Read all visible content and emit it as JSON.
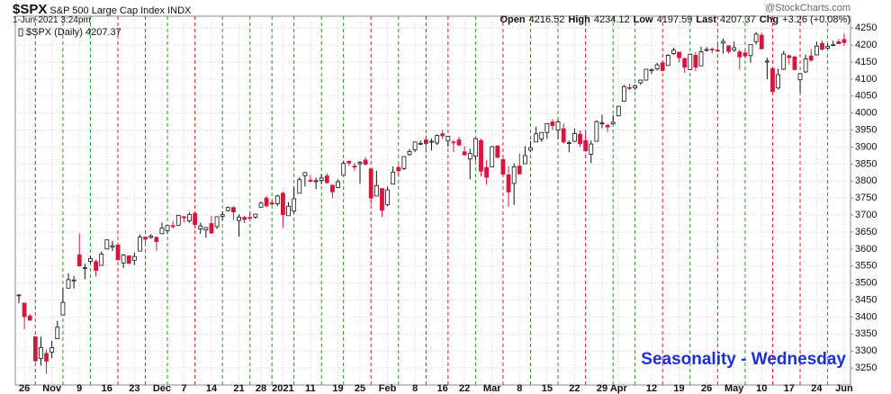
{
  "chart_data": {
    "type": "candlestick",
    "title": "$SPX",
    "subtitle": "S&P 500 Large Cap Index INDX",
    "date": "1-Jun-2021 3:24pm",
    "source": "@StockCharts.com",
    "stats": [
      {
        "label": "Open",
        "value": "4216.52"
      },
      {
        "label": "High",
        "value": "4234.12"
      },
      {
        "label": "Low",
        "value": "4197.59"
      },
      {
        "label": "Last",
        "value": "4207.37"
      },
      {
        "label": "Chg",
        "value": "+3.26 (+0.08%)"
      }
    ],
    "legend": "$SPX (Daily) 4207.37",
    "annotation": "Seasonality - Wednesday",
    "up_color": "#ffffff",
    "down_color": "#d4183d",
    "grid": true,
    "ylim": [
      3200,
      4285
    ],
    "yticks": [
      3250,
      3300,
      3350,
      3400,
      3450,
      3500,
      3550,
      3600,
      3650,
      3700,
      3750,
      3800,
      3850,
      3900,
      3950,
      4000,
      4050,
      4100,
      4150,
      4200,
      4250
    ],
    "categories": [
      null,
      "26",
      null,
      null,
      null,
      null,
      "Nov",
      null,
      null,
      null,
      null,
      "9",
      null,
      null,
      null,
      null,
      "16",
      null,
      null,
      null,
      null,
      "23",
      null,
      null,
      null,
      null,
      "Dec",
      null,
      null,
      null,
      "7",
      null,
      null,
      null,
      null,
      "14",
      null,
      null,
      null,
      null,
      "21",
      null,
      null,
      null,
      "28",
      null,
      null,
      null,
      "2021",
      null,
      null,
      null,
      null,
      "11",
      null,
      null,
      null,
      null,
      "19",
      null,
      null,
      null,
      "25",
      null,
      null,
      null,
      null,
      "Feb",
      null,
      null,
      null,
      null,
      "8",
      null,
      null,
      null,
      null,
      "16",
      null,
      null,
      null,
      "22",
      null,
      null,
      null,
      null,
      "Mar",
      null,
      null,
      null,
      null,
      "8",
      null,
      null,
      null,
      null,
      "15",
      null,
      null,
      null,
      null,
      "22",
      null,
      null,
      null,
      null,
      "29",
      null,
      null,
      "Apr",
      null,
      null,
      null,
      null,
      null,
      "12",
      null,
      null,
      null,
      null,
      "19",
      null,
      null,
      null,
      null,
      "26",
      null,
      null,
      null,
      null,
      "May",
      null,
      null,
      null,
      null,
      "10",
      null,
      null,
      null,
      null,
      "17",
      null,
      null,
      null,
      null,
      "24",
      null,
      null,
      null,
      null,
      "Jun"
    ],
    "open": [
      3464,
      3441,
      3403,
      3342,
      3278,
      3293,
      3297,
      3336,
      3406,
      3485,
      3508,
      3583,
      3543,
      3564,
      3563,
      3552,
      3600,
      3606,
      3612,
      3559,
      3580,
      3567,
      3594,
      3635,
      3634,
      3634,
      3645,
      3654,
      3669,
      3670,
      3695,
      3683,
      3705,
      3659,
      3656,
      3675,
      3666,
      3696,
      3713,
      3722,
      3684,
      3693,
      3693,
      3694,
      3723,
      3750,
      3736,
      3733,
      3764,
      3698,
      3712,
      3764,
      3816,
      3803,
      3801,
      3802,
      3815,
      3788,
      3781,
      3817,
      3858,
      3844,
      3851,
      3862,
      3836,
      3756,
      3778,
      3731,
      3791,
      3840,
      3837,
      3878,
      3892,
      3910,
      3921,
      3916,
      3912,
      3939,
      3918,
      3915,
      3921,
      3886,
      3865,
      3873,
      3919,
      3840,
      3842,
      3903,
      3863,
      3818,
      3793,
      3844,
      3851,
      3891,
      3915,
      3924,
      3943,
      3974,
      3950,
      3954,
      3913,
      3917,
      3938,
      3919,
      3879,
      3917,
      3970,
      3964,
      3968,
      3992,
      4035,
      4075,
      4074,
      4089,
      4097,
      4125,
      4130,
      4148,
      4140,
      4175,
      4179,
      4160,
      4128,
      4170,
      4139,
      4185,
      4188,
      4185,
      4206,
      4198,
      4185,
      4180,
      4177,
      4169,
      4210,
      4229,
      4150,
      4131,
      4074,
      4129,
      4169,
      4165,
      4098,
      4121,
      4168,
      4171,
      4205,
      4191,
      4201,
      4210,
      4216.52
    ],
    "high": [
      3466,
      3441,
      3409,
      3342,
      3342,
      3305,
      3330,
      3389,
      3486,
      3529,
      3521,
      3646,
      3557,
      3581,
      3569,
      3593,
      3628,
      3624,
      3619,
      3585,
      3582,
      3590,
      3643,
      3635,
      3644,
      3638,
      3678,
      3670,
      3682,
      3699,
      3697,
      3708,
      3712,
      3678,
      3665,
      3697,
      3695,
      3711,
      3725,
      3726,
      3702,
      3698,
      3711,
      3703,
      3740,
      3756,
      3744,
      3760,
      3769,
      3738,
      3783,
      3811,
      3826,
      3818,
      3810,
      3820,
      3823,
      3788,
      3805,
      3860,
      3861,
      3853,
      3859,
      3870,
      3836,
      3830,
      3778,
      3784,
      3843,
      3847,
      3872,
      3894,
      3915,
      3919,
      3931,
      3925,
      3937,
      3951,
      3933,
      3921,
      3930,
      3902,
      3895,
      3928,
      3925,
      3862,
      3903,
      3906,
      3874,
      3843,
      3852,
      3881,
      3903,
      3918,
      3960,
      3944,
      3970,
      3982,
      3981,
      3969,
      3919,
      3955,
      3949,
      3942,
      3919,
      3978,
      3995,
      3968,
      3994,
      4021,
      4083,
      4087,
      4084,
      4098,
      4129,
      4131,
      4148,
      4152,
      4173,
      4192,
      4180,
      4164,
      4175,
      4179,
      4195,
      4194,
      4193,
      4202,
      4219,
      4199,
      4210,
      4187,
      4188,
      4202,
      4238,
      4236,
      4163,
      4134,
      4131,
      4183,
      4171,
      4169,
      4117,
      4172,
      4188,
      4210,
      4213,
      4203,
      4213,
      4218,
      4234.12
    ],
    "low": [
      3440,
      3364,
      3388,
      3268,
      3257,
      3233,
      3279,
      3336,
      3405,
      3485,
      3484,
      3551,
      3511,
      3557,
      3519,
      3552,
      3600,
      3594,
      3567,
      3544,
      3556,
      3553,
      3594,
      3618,
      3630,
      3595,
      3645,
      3645,
      3660,
      3670,
      3678,
      3678,
      3660,
      3645,
      3633,
      3645,
      3659,
      3685,
      3710,
      3685,
      3636,
      3676,
      3689,
      3689,
      3723,
      3723,
      3730,
      3726,
      3663,
      3698,
      3705,
      3764,
      3784,
      3796,
      3776,
      3791,
      3792,
      3750,
      3780,
      3817,
      3845,
      3830,
      3792,
      3847,
      3732,
      3756,
      3694,
      3726,
      3791,
      3816,
      3832,
      3874,
      3885,
      3906,
      3885,
      3890,
      3906,
      3923,
      3901,
      3885,
      3902,
      3874,
      3805,
      3860,
      3814,
      3789,
      3842,
      3867,
      3818,
      3724,
      3730,
      3819,
      3851,
      3885,
      3915,
      3915,
      3924,
      3950,
      3923,
      3910,
      3885,
      3915,
      3901,
      3889,
      3853,
      3917,
      3955,
      3944,
      3966,
      3992,
      4035,
      4068,
      4068,
      4083,
      4096,
      4115,
      4125,
      4123,
      4140,
      4171,
      4150,
      4118,
      4126,
      4124,
      4139,
      4181,
      4176,
      4179,
      4175,
      4175,
      4180,
      4128,
      4160,
      4148,
      4202,
      4188,
      4099,
      4057,
      4069,
      4127,
      4143,
      4125,
      4061,
      4118,
      4151,
      4171,
      4183,
      4187,
      4197,
      4203,
      4197.59
    ],
    "close": [
      3465,
      3401,
      3391,
      3271,
      3310,
      3270,
      3310,
      3370,
      3443,
      3510,
      3509,
      3550,
      3545,
      3572,
      3537,
      3585,
      3627,
      3610,
      3568,
      3582,
      3558,
      3578,
      3635,
      3629,
      3638,
      3622,
      3662,
      3669,
      3666,
      3699,
      3692,
      3702,
      3672,
      3668,
      3663,
      3647,
      3695,
      3701,
      3722,
      3709,
      3694,
      3687,
      3690,
      3703,
      3735,
      3727,
      3732,
      3756,
      3701,
      3726,
      3748,
      3804,
      3825,
      3799,
      3801,
      3809,
      3795,
      3768,
      3798,
      3852,
      3853,
      3841,
      3855,
      3849,
      3750,
      3787,
      3714,
      3774,
      3826,
      3830,
      3872,
      3887,
      3915,
      3911,
      3910,
      3917,
      3934,
      3933,
      3932,
      3914,
      3906,
      3877,
      3881,
      3925,
      3829,
      3811,
      3901,
      3870,
      3820,
      3768,
      3842,
      3821,
      3875,
      3898,
      3939,
      3943,
      3969,
      3963,
      3974,
      3915,
      3913,
      3940,
      3910,
      3889,
      3909,
      3975,
      3971,
      3959,
      3973,
      4020,
      4078,
      4074,
      4080,
      4097,
      4129,
      4128,
      4142,
      4125,
      4170,
      4185,
      4163,
      4135,
      4173,
      4135,
      4180,
      4187,
      4186,
      4183,
      4211,
      4181,
      4192,
      4165,
      4168,
      4202,
      4232,
      4189,
      4153,
      4063,
      4113,
      4174,
      4163,
      4128,
      4116,
      4160,
      4156,
      4197,
      4188,
      4196,
      4201,
      4204,
      4207.37
    ],
    "vlines": [
      {
        "at": 3,
        "color": "#e02020"
      },
      {
        "at": 8,
        "color": "#1e9e1e"
      },
      {
        "at": 13,
        "color": "#1e9e1e"
      },
      {
        "at": 18,
        "color": "#e02020"
      },
      {
        "at": 23,
        "color": "#e02020"
      },
      {
        "at": 27,
        "color": "#1e9e1e"
      },
      {
        "at": 32,
        "color": "#e02020"
      },
      {
        "at": 37,
        "color": "#1e9e1e"
      },
      {
        "at": 42,
        "color": "#1e9e1e"
      },
      {
        "at": 46,
        "color": "#1e9e1e"
      },
      {
        "at": 50,
        "color": "#1e9e1e"
      },
      {
        "at": 55,
        "color": "#1e9e1e"
      },
      {
        "at": 59,
        "color": "#1e9e1e"
      },
      {
        "at": 64,
        "color": "#e02020"
      },
      {
        "at": 69,
        "color": "#1e9e1e"
      },
      {
        "at": 74,
        "color": "#e02020"
      },
      {
        "at": 78,
        "color": "#e02020"
      },
      {
        "at": 83,
        "color": "#1e9e1e"
      },
      {
        "at": 88,
        "color": "#e02020"
      },
      {
        "at": 93,
        "color": "#1e9e1e"
      },
      {
        "at": 98,
        "color": "#1e9e1e"
      },
      {
        "at": 103,
        "color": "#e02020"
      },
      {
        "at": 108,
        "color": "#1e9e1e"
      },
      {
        "at": 112,
        "color": "#1e9e1e"
      },
      {
        "at": 117,
        "color": "#e02020"
      },
      {
        "at": 122,
        "color": "#1e9e1e"
      },
      {
        "at": 127,
        "color": "#e02020"
      },
      {
        "at": 132,
        "color": "#1e9e1e"
      },
      {
        "at": 137,
        "color": "#e02020"
      },
      {
        "at": 142,
        "color": "#e02020"
      },
      {
        "at": 147,
        "color": "#1e9e1e"
      }
    ]
  }
}
